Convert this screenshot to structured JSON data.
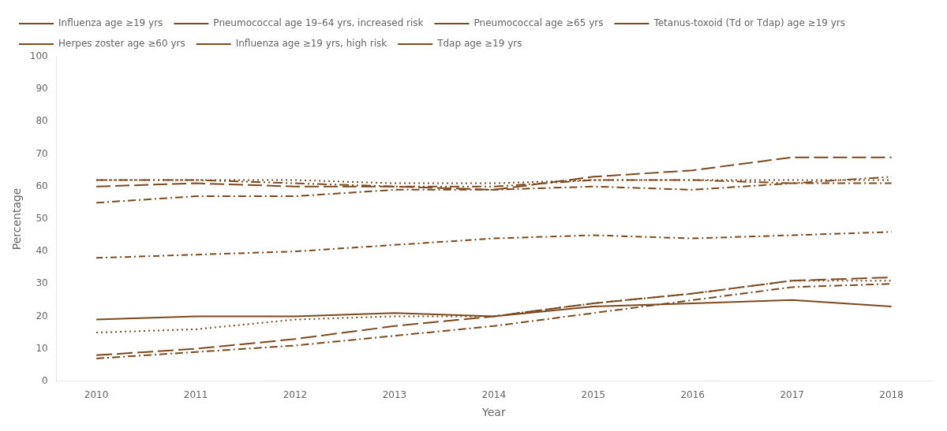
{
  "chart_data": {
    "type": "line",
    "x": [
      2010,
      2011,
      2012,
      2013,
      2014,
      2015,
      2016,
      2017,
      2018
    ],
    "xlabel": "Year",
    "ylabel": "Percentage",
    "xlim": [
      2009.6,
      2018.4
    ],
    "xticks": [
      2010,
      2011,
      2012,
      2013,
      2014,
      2015,
      2016,
      2017,
      2018
    ],
    "ylim": [
      0,
      100
    ],
    "yticks": [
      0,
      10,
      20,
      30,
      40,
      50,
      60,
      70,
      80,
      90,
      100
    ],
    "grid": false,
    "legend": "upper left",
    "color": "#7B4A1E",
    "series": [
      {
        "name": "Influenza age ≥19 yrs",
        "line_style": "dashdotdot",
        "values": [
          62,
          62,
          61,
          60,
          60,
          62,
          62,
          61,
          63
        ]
      },
      {
        "name": "Pneumococcal age 19–64 yrs, increased risk",
        "line_style": "solid",
        "values": [
          19,
          20,
          20,
          21,
          20,
          23,
          24,
          25,
          23
        ]
      },
      {
        "name": "Pneumococcal age ≥65 yrs",
        "line_style": "dashed",
        "values": [
          60,
          61,
          60,
          60,
          59,
          63,
          65,
          69,
          69
        ]
      },
      {
        "name": "Tetanus-toxoid (Td or Tdap) age ≥19 yrs",
        "line_style": "dotted",
        "values": [
          62,
          62,
          62,
          61,
          61,
          62,
          62,
          62,
          62
        ]
      },
      {
        "name": "Herpes zoster age ≥60 yrs",
        "line_style": "dashdot",
        "values": [
          38,
          39,
          40,
          42,
          44,
          45,
          44,
          45,
          46
        ]
      },
      {
        "name": "Influenza age ≥19 yrs, high risk",
        "line_style": "longdashdot",
        "values": [
          55,
          57,
          57,
          59,
          59,
          60,
          59,
          61,
          61
        ]
      },
      {
        "name": "Tdap age ≥19 yrs",
        "line_style": "longdash",
        "values": [
          8,
          10,
          13,
          17,
          20,
          24,
          27,
          31,
          32
        ]
      },
      {
        "line_style": "dotted",
        "values": [
          15,
          16,
          19,
          20,
          20,
          24,
          27,
          31,
          31
        ]
      },
      {
        "line_style": "longdashdot",
        "values": [
          7,
          9,
          11,
          14,
          17,
          21,
          25,
          29,
          30
        ]
      }
    ]
  }
}
